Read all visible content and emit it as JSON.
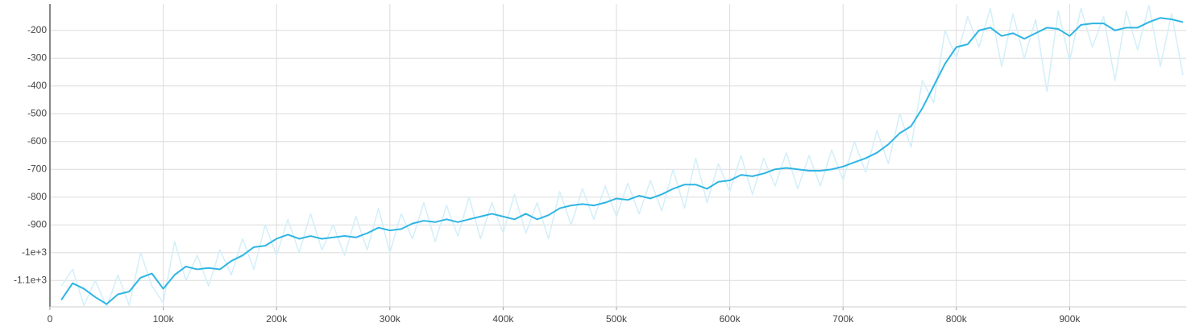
{
  "chart_data": {
    "type": "line",
    "x": [
      10000,
      20000,
      30000,
      40000,
      50000,
      60000,
      70000,
      80000,
      90000,
      100000,
      110000,
      120000,
      130000,
      140000,
      150000,
      160000,
      170000,
      180000,
      190000,
      200000,
      210000,
      220000,
      230000,
      240000,
      250000,
      260000,
      270000,
      280000,
      290000,
      300000,
      310000,
      320000,
      330000,
      340000,
      350000,
      360000,
      370000,
      380000,
      390000,
      400000,
      410000,
      420000,
      430000,
      440000,
      450000,
      460000,
      470000,
      480000,
      490000,
      500000,
      510000,
      520000,
      530000,
      540000,
      550000,
      560000,
      570000,
      580000,
      590000,
      600000,
      610000,
      620000,
      630000,
      640000,
      650000,
      660000,
      670000,
      680000,
      690000,
      700000,
      710000,
      720000,
      730000,
      740000,
      750000,
      760000,
      770000,
      780000,
      790000,
      800000,
      810000,
      820000,
      830000,
      840000,
      850000,
      860000,
      870000,
      880000,
      890000,
      900000,
      910000,
      920000,
      930000,
      940000,
      950000,
      960000,
      970000,
      980000,
      990000,
      1000000
    ],
    "series": [
      {
        "color": "#d3eff9",
        "values": [
          -1120,
          -1060,
          -1190,
          -1100,
          -1195,
          -1080,
          -1190,
          -1000,
          -1120,
          -1180,
          -960,
          -1100,
          -1010,
          -1120,
          -990,
          -1080,
          -950,
          -1060,
          -900,
          -1010,
          -880,
          -1000,
          -860,
          -990,
          -900,
          -1010,
          -870,
          -990,
          -840,
          -1000,
          -860,
          -950,
          -820,
          -960,
          -830,
          -940,
          -800,
          -950,
          -820,
          -930,
          -790,
          -930,
          -820,
          -950,
          -780,
          -900,
          -770,
          -880,
          -760,
          -870,
          -750,
          -860,
          -740,
          -850,
          -700,
          -840,
          -660,
          -820,
          -680,
          -780,
          -650,
          -790,
          -660,
          -760,
          -640,
          -770,
          -650,
          -760,
          -630,
          -740,
          -600,
          -710,
          -560,
          -680,
          -500,
          -620,
          -380,
          -460,
          -200,
          -300,
          -150,
          -260,
          -120,
          -330,
          -140,
          -300,
          -160,
          -420,
          -130,
          -310,
          -120,
          -260,
          -150,
          -380,
          -130,
          -270,
          -110,
          -330,
          -140,
          -360
        ]
      },
      {
        "color": "#2fb5e3",
        "values": [
          -1170,
          -1110,
          -1130,
          -1160,
          -1185,
          -1150,
          -1140,
          -1090,
          -1075,
          -1130,
          -1080,
          -1050,
          -1060,
          -1055,
          -1060,
          -1030,
          -1010,
          -980,
          -975,
          -950,
          -935,
          -950,
          -940,
          -950,
          -945,
          -940,
          -945,
          -930,
          -910,
          -920,
          -915,
          -895,
          -885,
          -890,
          -880,
          -890,
          -880,
          -870,
          -860,
          -870,
          -880,
          -860,
          -880,
          -865,
          -840,
          -830,
          -825,
          -830,
          -820,
          -805,
          -810,
          -795,
          -805,
          -790,
          -770,
          -755,
          -755,
          -770,
          -745,
          -740,
          -720,
          -725,
          -715,
          -700,
          -695,
          -700,
          -705,
          -705,
          -700,
          -690,
          -675,
          -660,
          -640,
          -610,
          -570,
          -545,
          -480,
          -400,
          -320,
          -260,
          -250,
          -200,
          -190,
          -220,
          -210,
          -230,
          -210,
          -190,
          -195,
          -220,
          -180,
          -175,
          -175,
          -200,
          -190,
          -190,
          -170,
          -155,
          -160,
          -170
        ]
      }
    ],
    "xlim": [
      0,
      1000000
    ],
    "ylim": [
      -1195,
      -105
    ],
    "xticks": [
      0,
      {
        "value": 100000,
        "label": "100k"
      },
      {
        "value": 200000,
        "label": "200k"
      },
      {
        "value": 300000,
        "label": "300k"
      },
      {
        "value": 400000,
        "label": "400k"
      },
      {
        "value": 500000,
        "label": "500k"
      },
      {
        "value": 600000,
        "label": "600k"
      },
      {
        "value": 700000,
        "label": "700k"
      },
      {
        "value": 800000,
        "label": "800k"
      },
      {
        "value": 900000,
        "label": "900k"
      }
    ],
    "yticks": [
      -200,
      -300,
      -400,
      -500,
      -600,
      -700,
      -800,
      -900,
      {
        "value": -1000,
        "label": "-1e+3"
      },
      {
        "value": -1100,
        "label": "-1.1e+3"
      }
    ],
    "grid": true
  }
}
